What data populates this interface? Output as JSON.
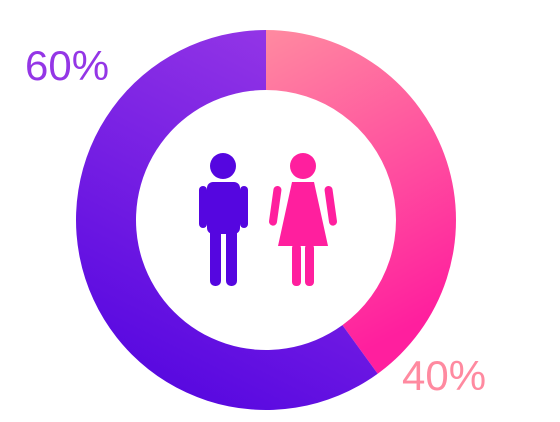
{
  "chart_data": {
    "type": "pie",
    "style": "donut",
    "slices": [
      {
        "value": 40,
        "label": "40%",
        "color_start": "#ff8aa0",
        "color_end": "#ff1f9e",
        "icon": "woman-icon"
      },
      {
        "value": 60,
        "label": "60%",
        "color_start": "#9436e6",
        "color_end": "#5506e0",
        "icon": "man-icon"
      }
    ]
  }
}
